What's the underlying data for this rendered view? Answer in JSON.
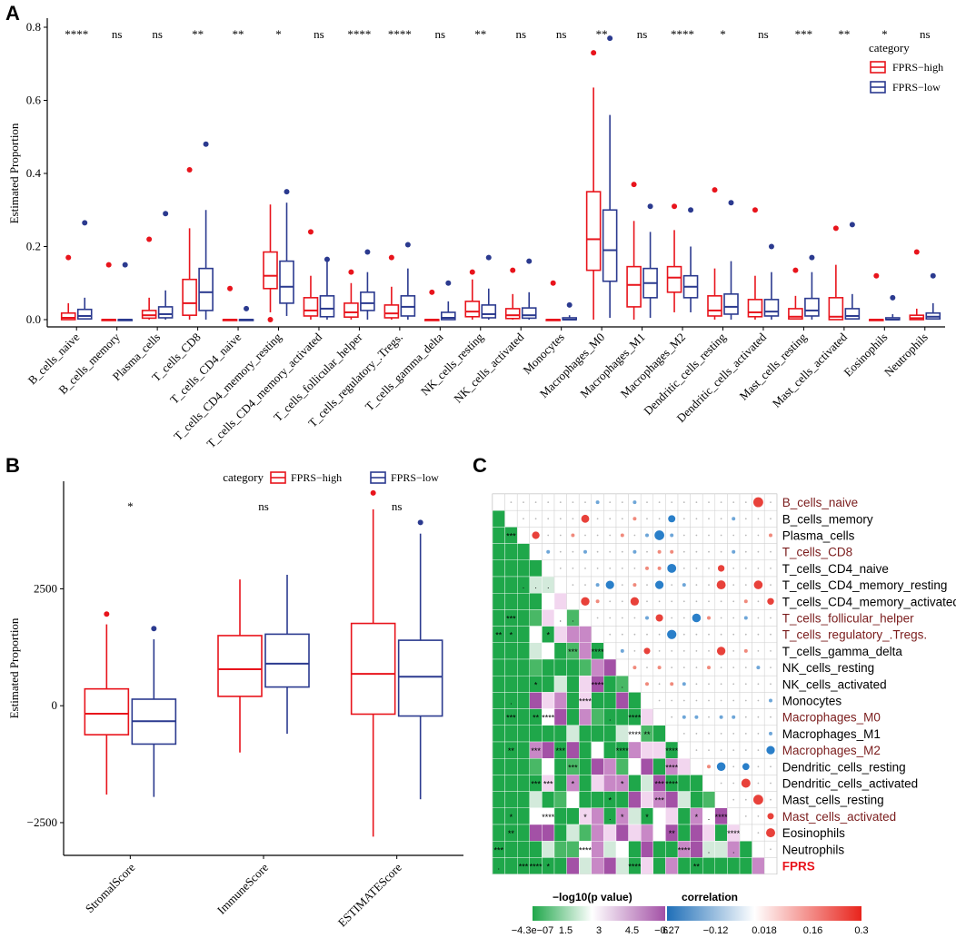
{
  "panels": {
    "a": "A",
    "b": "B",
    "c": "C"
  },
  "colors": {
    "high": "#e8141c",
    "low": "#2b3a8f",
    "axis": "#000000",
    "rowlabel_highlight": "#7a1c1c",
    "fprs_label": "#e8141c"
  },
  "chart_data": [
    {
      "id": "panel-a",
      "type": "boxplot",
      "ylabel": "Estimated Proportion",
      "ylim": [
        0,
        0.8
      ],
      "yticks": [
        "0.0",
        "0.2",
        "0.4",
        "0.6",
        "0.8"
      ],
      "legend": {
        "title": "category",
        "entries": [
          "FPRS−high",
          "FPRS−low"
        ],
        "placement": "top-right"
      },
      "categories": [
        "B_cells_naive",
        "B_cells_memory",
        "Plasma_cells",
        "T_cells_CD8",
        "T_cells_CD4_naive",
        "T_cells_CD4_memory_resting",
        "T_cells_CD4_memory_activated",
        "T_cells_follicular_helper",
        "T_cells_regulatory_.Tregs.",
        "T_cells_gamma_delta",
        "NK_cells_resting",
        "NK_cells_activated",
        "Monocytes",
        "Macrophages_M0",
        "Macrophages_M1",
        "Macrophages_M2",
        "Dendritic_cells_resting",
        "Dendritic_cells_activated",
        "Mast_cells_resting",
        "Mast_cells_activated",
        "Eosinophils",
        "Neutrophils"
      ],
      "significance": [
        "****",
        "ns",
        "ns",
        "**",
        "**",
        "*",
        "ns",
        "****",
        "****",
        "ns",
        "**",
        "ns",
        "ns",
        "**",
        "ns",
        "****",
        "*",
        "ns",
        "***",
        "**",
        "*",
        "ns"
      ],
      "series": [
        {
          "name": "FPRS−high",
          "boxes": [
            [
              0,
              0,
              0.005,
              0.018,
              0.045
            ],
            [
              0,
              0,
              0,
              0,
              0
            ],
            [
              0,
              0.004,
              0.012,
              0.025,
              0.06
            ],
            [
              0,
              0.012,
              0.045,
              0.11,
              0.25
            ],
            [
              0,
              0,
              0,
              0,
              0
            ],
            [
              0.02,
              0.085,
              0.12,
              0.185,
              0.315
            ],
            [
              0,
              0.01,
              0.025,
              0.06,
              0.12
            ],
            [
              0,
              0.007,
              0.02,
              0.045,
              0.1
            ],
            [
              0,
              0.005,
              0.017,
              0.04,
              0.09
            ],
            [
              0,
              0,
              0,
              0,
              0
            ],
            [
              0,
              0.008,
              0.022,
              0.05,
              0.11
            ],
            [
              0,
              0.003,
              0.012,
              0.03,
              0.07
            ],
            [
              0,
              0,
              0,
              0,
              0
            ],
            [
              0,
              0.135,
              0.22,
              0.35,
              0.635
            ],
            [
              0,
              0.035,
              0.095,
              0.145,
              0.27
            ],
            [
              0.02,
              0.075,
              0.115,
              0.145,
              0.245
            ],
            [
              0,
              0.01,
              0.025,
              0.065,
              0.14
            ],
            [
              0,
              0.008,
              0.02,
              0.055,
              0.12
            ],
            [
              0,
              0.002,
              0.008,
              0.03,
              0.065
            ],
            [
              0,
              0,
              0.008,
              0.06,
              0.15
            ],
            [
              0,
              0,
              0,
              0,
              0
            ],
            [
              0,
              0,
              0.004,
              0.012,
              0.03
            ]
          ],
          "outliers": [
            0.17,
            0.15,
            0.22,
            0.41,
            0.085,
            0,
            0.24,
            0.13,
            0.17,
            0.075,
            0.13,
            0.135,
            0.1,
            0.73,
            0.37,
            0.31,
            0.355,
            0.3,
            0.135,
            0.25,
            0.12,
            0.185
          ]
        },
        {
          "name": "FPRS−low",
          "boxes": [
            [
              0,
              0.002,
              0.01,
              0.028,
              0.06
            ],
            [
              0,
              0,
              0,
              0,
              0
            ],
            [
              0,
              0.005,
              0.015,
              0.035,
              0.08
            ],
            [
              0,
              0.025,
              0.075,
              0.14,
              0.3
            ],
            [
              0,
              0,
              0,
              0,
              0
            ],
            [
              0.01,
              0.045,
              0.09,
              0.16,
              0.32
            ],
            [
              0,
              0.008,
              0.03,
              0.065,
              0.16
            ],
            [
              0,
              0.025,
              0.045,
              0.075,
              0.13
            ],
            [
              0,
              0.01,
              0.035,
              0.065,
              0.14
            ],
            [
              0,
              0,
              0.005,
              0.02,
              0.05
            ],
            [
              0,
              0.005,
              0.015,
              0.04,
              0.085
            ],
            [
              0,
              0.004,
              0.012,
              0.032,
              0.075
            ],
            [
              0,
              0,
              0,
              0.005,
              0.012
            ],
            [
              0.005,
              0.105,
              0.19,
              0.3,
              0.56
            ],
            [
              0.005,
              0.06,
              0.1,
              0.14,
              0.24
            ],
            [
              0.02,
              0.06,
              0.09,
              0.12,
              0.2
            ],
            [
              0,
              0.015,
              0.035,
              0.07,
              0.16
            ],
            [
              0,
              0.01,
              0.022,
              0.055,
              0.13
            ],
            [
              0,
              0.01,
              0.025,
              0.058,
              0.13
            ],
            [
              0,
              0.002,
              0.01,
              0.03,
              0.07
            ],
            [
              0,
              0,
              0,
              0.005,
              0.015
            ],
            [
              0,
              0.002,
              0.008,
              0.018,
              0.045
            ]
          ],
          "outliers": [
            0.265,
            0.15,
            0.29,
            0.48,
            0.03,
            0.35,
            0.165,
            0.185,
            0.205,
            0.1,
            0.17,
            0.16,
            0.04,
            0.77,
            0.31,
            0.3,
            0.32,
            0.2,
            0.17,
            0.26,
            0.06,
            0.12
          ]
        }
      ]
    },
    {
      "id": "panel-b",
      "type": "boxplot",
      "ylabel": "Estimated Proportion",
      "ylim": [
        -3200,
        4800
      ],
      "yticks": [
        "−2500",
        "0",
        "2500"
      ],
      "ytick_values": [
        -2500,
        0,
        2500
      ],
      "legend": {
        "title": "category",
        "entries": [
          "FPRS−high",
          "FPRS−low"
        ],
        "placement": "top"
      },
      "categories": [
        "StromalScore",
        "ImmuneScore",
        "ESTIMATEScore"
      ],
      "significance": [
        "*",
        "ns",
        "ns"
      ],
      "series": [
        {
          "name": "FPRS−high",
          "boxes": [
            [
              -1900,
              -620,
              -170,
              360,
              1740
            ],
            [
              -1000,
              200,
              780,
              1500,
              2700
            ],
            [
              -2800,
              -180,
              680,
              1760,
              4200
            ]
          ],
          "outliers": [
            1960,
            null,
            4550
          ]
        },
        {
          "name": "FPRS−low",
          "boxes": [
            [
              -1950,
              -820,
              -330,
              140,
              1420
            ],
            [
              -600,
              400,
              900,
              1530,
              2800
            ],
            [
              -2000,
              -220,
              620,
              1400,
              3680
            ]
          ],
          "outliers": [
            1650,
            null,
            3920
          ]
        }
      ]
    },
    {
      "id": "panel-c",
      "type": "heatmap",
      "rows": [
        "B_cells_naive",
        "B_cells_memory",
        "Plasma_cells",
        "T_cells_CD8",
        "T_cells_CD4_naive",
        "T_cells_CD4_memory_resting",
        "T_cells_CD4_memory_activated",
        "T_cells_follicular_helper",
        "T_cells_regulatory_.Tregs.",
        "T_cells_gamma_delta",
        "NK_cells_resting",
        "NK_cells_activated",
        "Monocytes",
        "Macrophages_M0",
        "Macrophages_M1",
        "Macrophages_M2",
        "Dendritic_cells_resting",
        "Dendritic_cells_activated",
        "Mast_cells_resting",
        "Mast_cells_activated",
        "Eosinophils",
        "Neutrophils",
        "FPRS"
      ],
      "highlighted_rows": [
        "B_cells_naive",
        "T_cells_CD8",
        "T_cells_follicular_helper",
        "T_cells_regulatory_.Tregs.",
        "Macrophages_M0",
        "Macrophages_M2",
        "Mast_cells_activated"
      ],
      "legend_pvalue": {
        "title": "−log10(p value)",
        "ticks": [
          "−4.3e−07",
          "1.5",
          "3",
          "4.5",
          "6"
        ]
      },
      "legend_corr": {
        "title": "correlation",
        "ticks": [
          "−0.27",
          "−0.12",
          "0.018",
          "0.16",
          "0.3"
        ]
      }
    }
  ]
}
